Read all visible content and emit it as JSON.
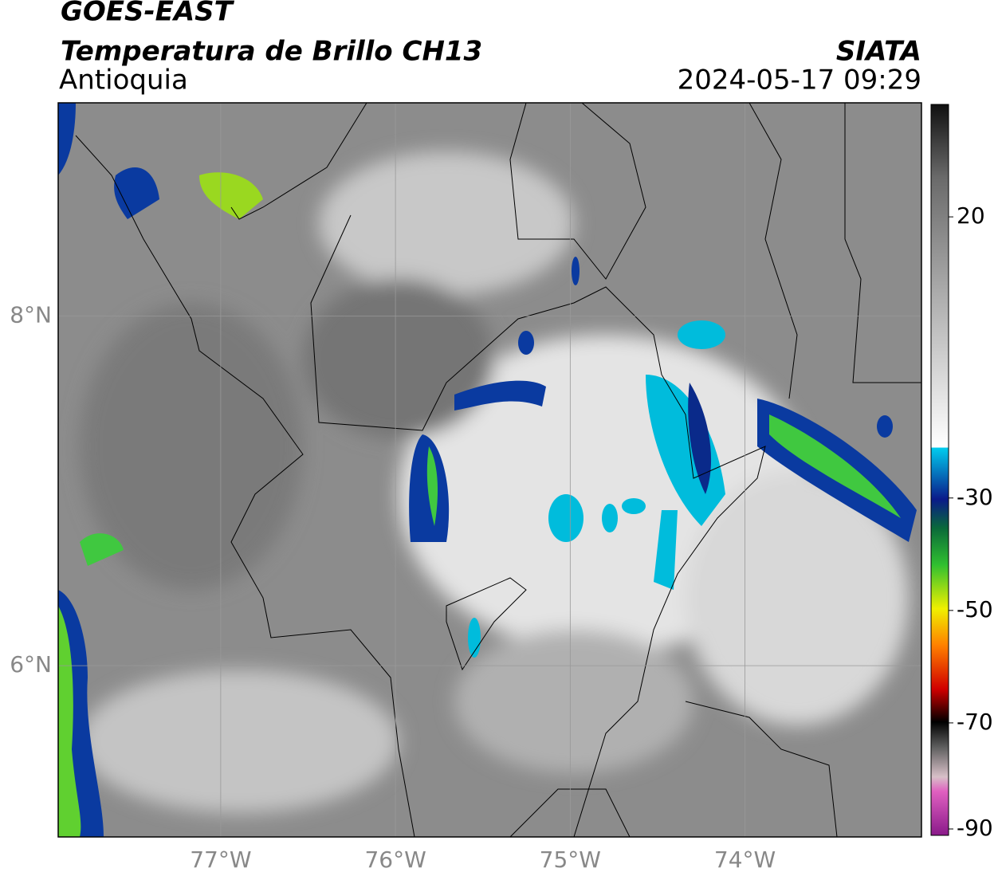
{
  "header": {
    "satellite": "GOES-EAST",
    "product": "Temperatura de Brillo CH13",
    "region": "Antioquia",
    "source": "SIATA",
    "datetime": "2024-05-17 09:29"
  },
  "map": {
    "lonlim": [
      -77.93,
      -72.99
    ],
    "latlim": [
      5.02,
      9.22
    ],
    "lat_ticks": [
      {
        "value": 8,
        "label": "8°N"
      },
      {
        "value": 6,
        "label": "6°N"
      }
    ],
    "lon_ticks": [
      {
        "value": -77,
        "label": "77°W"
      },
      {
        "value": -76,
        "label": "76°W"
      },
      {
        "value": -75,
        "label": "75°W"
      },
      {
        "value": -74,
        "label": "74°W"
      }
    ]
  },
  "colorbar": {
    "range": [
      -90,
      40
    ],
    "ticks": [
      20,
      -30,
      -50,
      -70,
      -90
    ]
  }
}
